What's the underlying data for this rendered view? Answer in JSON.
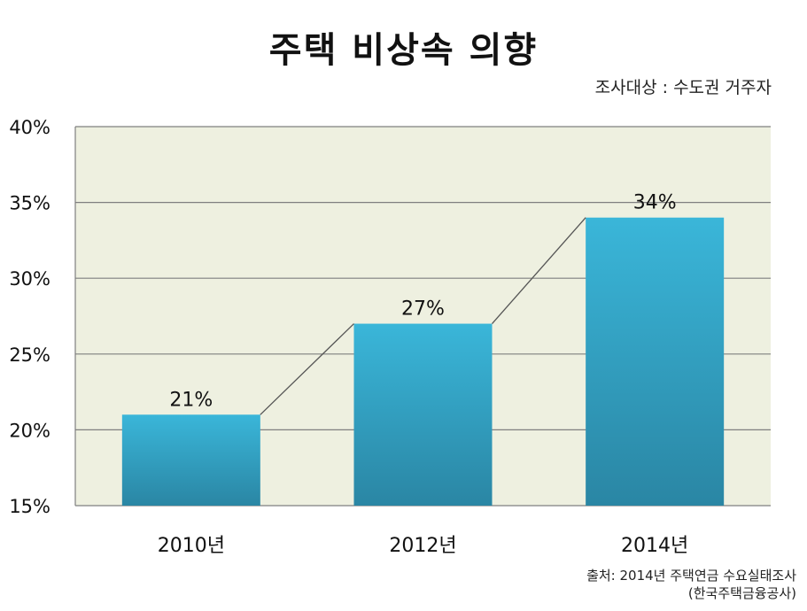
{
  "title": "주택 비상속 의향",
  "subtitle": "조사대상 : 수도권 거주자",
  "source": {
    "line1": "출처: 2014년 주택연금 수요실태조사",
    "line2": "(한국주택금융공사)"
  },
  "chart_data": {
    "type": "bar",
    "categories": [
      "2010년",
      "2012년",
      "2014년"
    ],
    "values": [
      21,
      27,
      34
    ],
    "data_labels": [
      "21%",
      "27%",
      "34%"
    ],
    "ylim": [
      15,
      40
    ],
    "yticks": [
      15,
      20,
      25,
      30,
      35,
      40
    ],
    "ytick_labels": [
      "15%",
      "20%",
      "25%",
      "30%",
      "35%",
      "40%"
    ],
    "grid": true,
    "connector_line": true,
    "colors": {
      "plot_bg": "#eef0e0",
      "bar_top": "#3ab6d9",
      "bar_bottom": "#2a86a4",
      "gridline": "#7f7f7f",
      "connector": "#555555"
    }
  }
}
